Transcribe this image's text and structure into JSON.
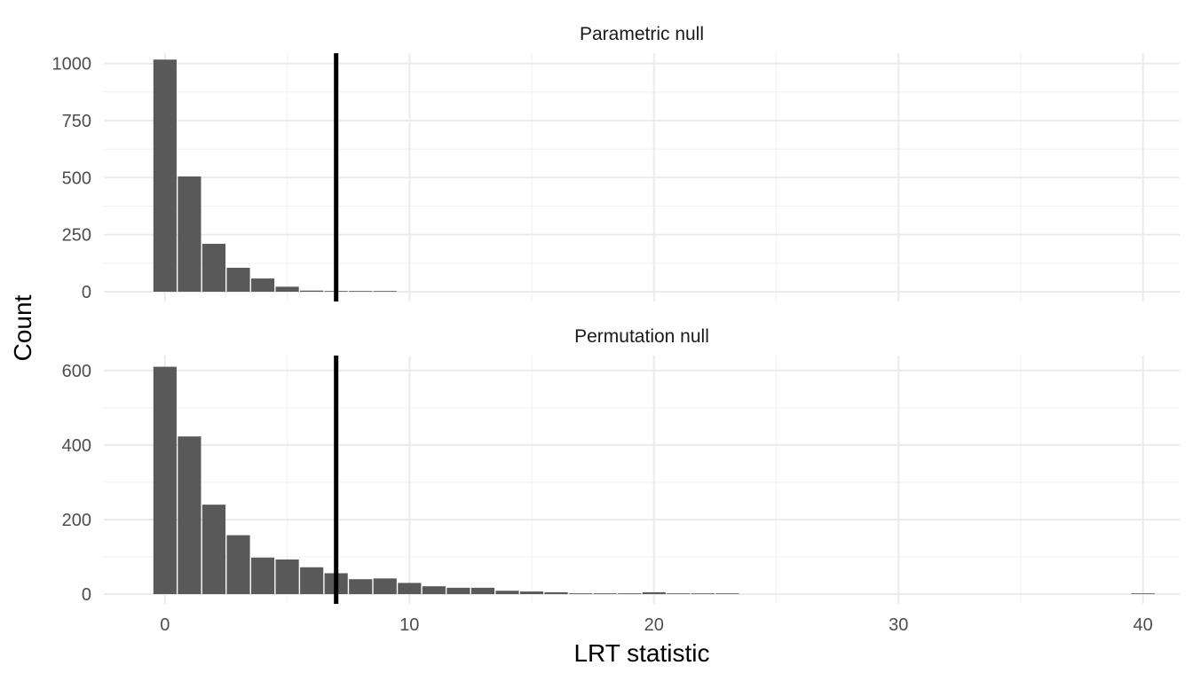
{
  "chart_data": {
    "type": "bar",
    "xlabel": "LRT statistic",
    "ylabel": "Count",
    "x_ticks": [
      0,
      10,
      20,
      30,
      40
    ],
    "xlim": [
      -2.5,
      41.5
    ],
    "bin_width": 1,
    "bin_start": -0.5,
    "observed_line_x": 7,
    "colors": {
      "bar": "#595959",
      "line": "#000000",
      "grid_major": "#ebebeb",
      "grid_minor": "#f3f3f3"
    },
    "grid": true,
    "legend": "none",
    "panels": [
      {
        "title": "Parametric null",
        "ylim": [
          0,
          1045
        ],
        "y_ticks": [
          0,
          250,
          500,
          750,
          1000
        ],
        "counts": [
          1017,
          505,
          210,
          105,
          58,
          22,
          5,
          2,
          1,
          1,
          0,
          0,
          0,
          0,
          0,
          0,
          0,
          0,
          0,
          0,
          0,
          0,
          0,
          0,
          0,
          0,
          0,
          0,
          0,
          0,
          0,
          0,
          0,
          0,
          0,
          0,
          0,
          0,
          0,
          0,
          0
        ]
      },
      {
        "title": "Permutation null",
        "ylim": [
          0,
          640
        ],
        "y_ticks": [
          0,
          200,
          400,
          600
        ],
        "counts": [
          610,
          423,
          240,
          158,
          98,
          93,
          72,
          56,
          40,
          42,
          30,
          21,
          17,
          17,
          9,
          7,
          5,
          2,
          2,
          2,
          5,
          1,
          1,
          1,
          0,
          0,
          0,
          0,
          0,
          0,
          0,
          0,
          0,
          0,
          0,
          0,
          0,
          0,
          0,
          0,
          1
        ]
      }
    ]
  }
}
